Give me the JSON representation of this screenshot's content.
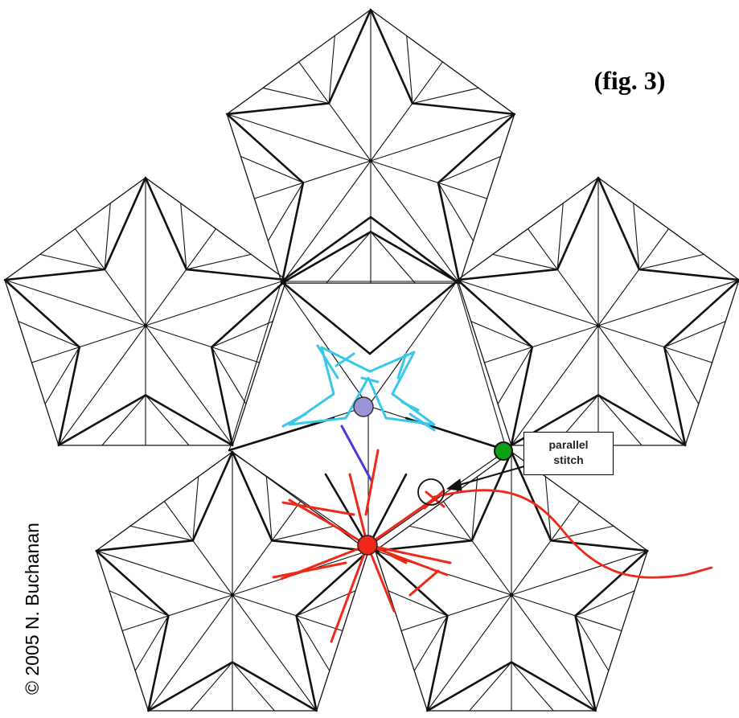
{
  "figure_label": "(fig. 3)",
  "copyright": "© 2005 N. Buchanan",
  "callout": {
    "line1": "parallel",
    "line2": "stitch"
  },
  "colors": {
    "line": "#111111",
    "cyan_stitch": "#38c8e8",
    "blue_stitch": "#4a3ad8",
    "red_stitch": "#f02818",
    "green_dot": "#10a018",
    "purple_dot": "#9a94d8"
  }
}
